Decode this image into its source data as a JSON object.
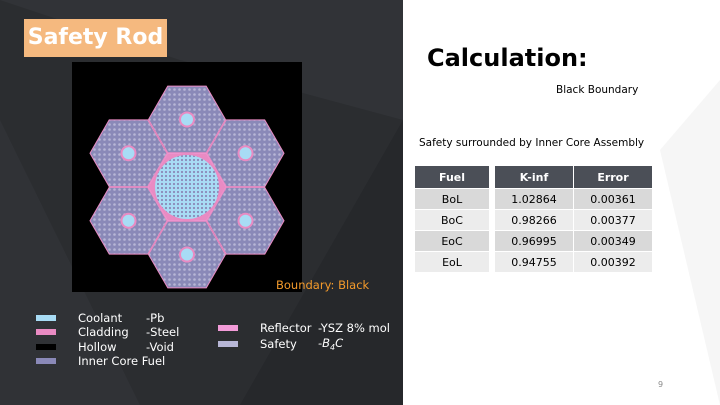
{
  "title": "Safety Rod",
  "figure": {
    "boundary_label": "Boundary: Black"
  },
  "legend": [
    {
      "name": "Coolant",
      "material": "-Pb",
      "color": "#a8dcf5"
    },
    {
      "name": "Cladding",
      "material": "-Steel",
      "color": "#e98bc3"
    },
    {
      "name": "Hollow",
      "material": "-Void",
      "color": "#000000"
    },
    {
      "name": "Inner Core Fuel",
      "material": "",
      "color": "#8a89b8"
    },
    {
      "name": "Reflector",
      "material": "-YSZ 8% mol",
      "color": "#f29bd8"
    },
    {
      "name": "Safety",
      "material": "-B",
      "material_sub": "4",
      "material_tail": "C",
      "color": "#b7b6d6"
    }
  ],
  "calculation": {
    "heading": "Calculation:",
    "boundary": "Black  Boundary",
    "note": "Safety surrounded by Inner Core Assembly"
  },
  "table": {
    "headers": {
      "fuel": "Fuel",
      "kinf": "K-inf",
      "error": "Error"
    },
    "rows": [
      {
        "fuel": "BoL",
        "kinf": "1.02864",
        "error": "0.00361"
      },
      {
        "fuel": "BoC",
        "kinf": "0.98266",
        "error": "0.00377"
      },
      {
        "fuel": "EoC",
        "kinf": "0.96995",
        "error": "0.00349"
      },
      {
        "fuel": "EoL",
        "kinf": "0.94755",
        "error": "0.00392"
      }
    ]
  },
  "page_number": "9"
}
